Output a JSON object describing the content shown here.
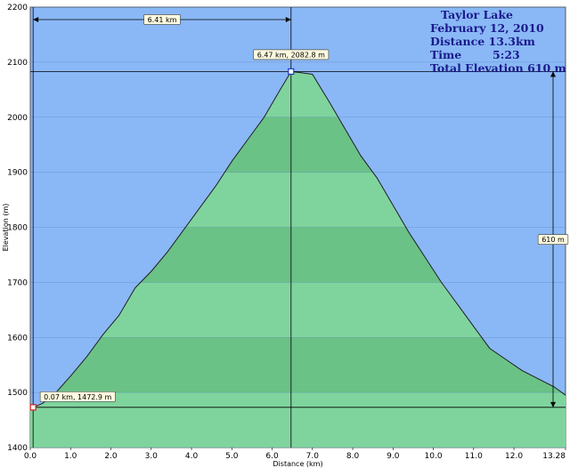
{
  "info_box": {
    "title": "Taylor Lake",
    "date": "February 12, 2010",
    "distance": "Distance  13.3km",
    "time": "Time        5:23",
    "elevation": "Total Elevation  610 m"
  },
  "markers": {
    "peak_label": "6.47 km, 2082.8 m",
    "start_label": "0.07 km, 1472.9 m",
    "horizontal_measure": "6.41 km",
    "vertical_measure": "610 m"
  },
  "colors": {
    "sky": "#8ab8f6",
    "fill_light": "#7fd49d",
    "fill_dark": "#6ac286",
    "line": "#1f1f1f",
    "info_text": "#1a1a8c"
  },
  "chart_data": {
    "type": "area",
    "xlabel": "Distance  (km)",
    "ylabel": "Elevation (m)",
    "xlim": [
      0,
      13.28
    ],
    "ylim": [
      1400,
      2200
    ],
    "x_ticks": [
      "0.0",
      "1.0",
      "2.0",
      "3.0",
      "4.0",
      "5.0",
      "6.0",
      "7.0",
      "8.0",
      "9.0",
      "10.0",
      "11.0",
      "12.0",
      "13.28"
    ],
    "y_ticks": [
      "1400",
      "1500",
      "1600",
      "1700",
      "1800",
      "1900",
      "2000",
      "2100",
      "2200"
    ],
    "grid": true,
    "legend": "none",
    "series": [
      {
        "x": [
          0.0,
          0.07,
          0.3,
          0.6,
          1.0,
          1.4,
          1.8,
          2.2,
          2.6,
          3.0,
          3.4,
          3.8,
          4.2,
          4.6,
          5.0,
          5.4,
          5.8,
          6.2,
          6.47,
          6.7,
          7.0,
          7.4,
          7.8,
          8.2,
          8.6,
          9.0,
          9.4,
          9.8,
          10.2,
          10.6,
          11.0,
          11.4,
          11.8,
          12.2,
          12.6,
          13.0,
          13.28
        ],
        "y": [
          1472,
          1473,
          1480,
          1497,
          1530,
          1565,
          1605,
          1640,
          1690,
          1720,
          1755,
          1795,
          1835,
          1875,
          1920,
          1960,
          2000,
          2050,
          2083,
          2081,
          2078,
          2030,
          1980,
          1930,
          1890,
          1840,
          1790,
          1745,
          1700,
          1660,
          1620,
          1580,
          1560,
          1540,
          1525,
          1510,
          1495
        ]
      }
    ]
  }
}
